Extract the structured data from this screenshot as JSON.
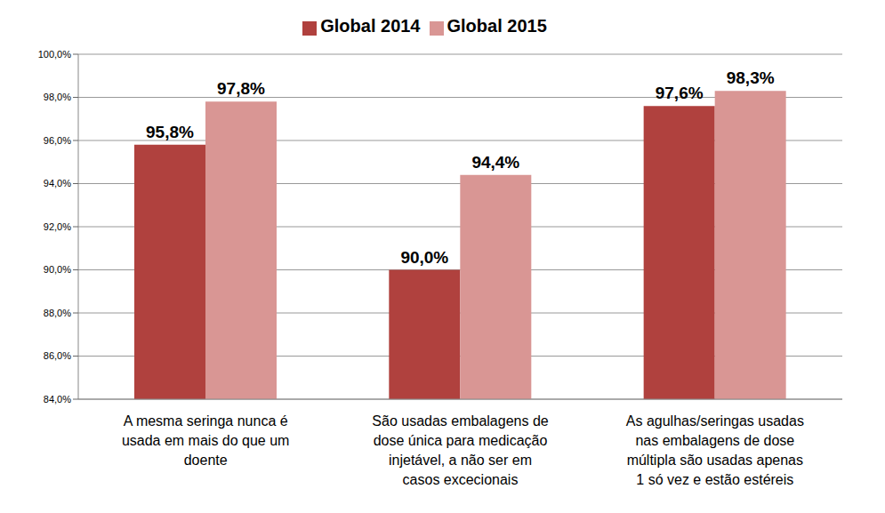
{
  "chart_data": {
    "type": "bar",
    "categories": [
      "A mesma seringa nunca é usada em mais do que um doente",
      "São usadas embalagens de dose única para medicação injetável, a não ser em casos excecionais",
      "As agulhas/seringas usadas nas embalagens de dose múltipla são usadas apenas 1 só vez e estão estéreis"
    ],
    "series": [
      {
        "name": "Global 2014",
        "color": "#b0413e",
        "values": [
          95.8,
          90.0,
          97.6
        ],
        "value_labels": [
          "95,8%",
          "90,0%",
          "97,6%"
        ]
      },
      {
        "name": "Global 2015",
        "color": "#d99694",
        "values": [
          97.8,
          94.4,
          98.3
        ],
        "value_labels": [
          "97,8%",
          "94,4%",
          "98,3%"
        ]
      }
    ],
    "ylim": [
      84,
      100
    ],
    "yticks": [
      {
        "value": 84,
        "label": "84,0%"
      },
      {
        "value": 86,
        "label": "86,0%"
      },
      {
        "value": 88,
        "label": "88,0%"
      },
      {
        "value": 90,
        "label": "90,0%"
      },
      {
        "value": 92,
        "label": "92,0%"
      },
      {
        "value": 94,
        "label": "94,0%"
      },
      {
        "value": 96,
        "label": "96,0%"
      },
      {
        "value": 98,
        "label": "98,0%"
      },
      {
        "value": 100,
        "label": "100,0%"
      }
    ],
    "grid": true,
    "legend": "top",
    "data_labels": true
  }
}
